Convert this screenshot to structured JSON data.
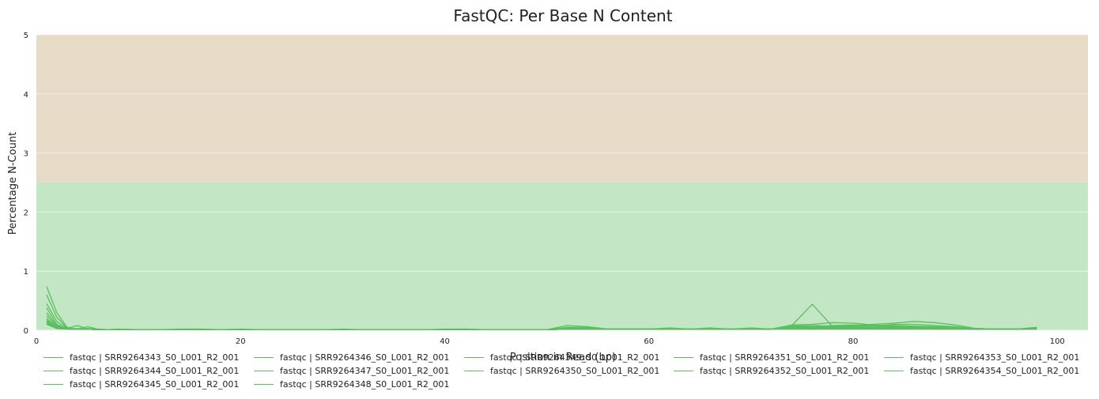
{
  "chart_data": {
    "type": "line",
    "title": "FastQC: Per Base N Content",
    "xlabel": "Position in Read (bp)",
    "ylabel": "Percentage N-Count",
    "xlim": [
      0,
      103
    ],
    "ylim": [
      0,
      5
    ],
    "x_ticks": [
      "0",
      "20",
      "40",
      "60",
      "80",
      "100"
    ],
    "y_ticks": [
      "0",
      "1",
      "2",
      "3",
      "4",
      "5"
    ],
    "grid": true,
    "legend_position": "bottom",
    "bands": [
      {
        "from": 0,
        "to": 2.5,
        "color": "#c3e6c4"
      },
      {
        "from": 2.5,
        "to": 5,
        "color": "#e5dbc6"
      }
    ],
    "line_color": "#5cbf5f",
    "x": [
      1,
      2,
      3,
      4,
      5,
      6,
      7,
      8,
      10,
      12,
      14,
      16,
      18,
      20,
      22,
      24,
      26,
      28,
      30,
      32,
      34,
      36,
      38,
      40,
      42,
      44,
      46,
      48,
      50,
      52,
      54,
      56,
      58,
      60,
      62,
      64,
      66,
      68,
      70,
      72,
      74,
      76,
      78,
      80,
      82,
      84,
      86,
      88,
      90,
      92,
      94,
      96,
      98
    ],
    "series": [
      {
        "name": "fastqc | SRR9264343_S0_L001_R2_001",
        "values": [
          0.74,
          0.3,
          0.05,
          0.02,
          0.06,
          0.02,
          0.01,
          0.02,
          0.01,
          0.01,
          0.02,
          0.02,
          0.01,
          0.02,
          0.01,
          0.01,
          0.01,
          0.01,
          0.02,
          0.01,
          0.01,
          0.01,
          0.01,
          0.02,
          0.02,
          0.01,
          0.01,
          0.01,
          0.01,
          0.08,
          0.06,
          0.02,
          0.02,
          0.02,
          0.04,
          0.02,
          0.04,
          0.02,
          0.02,
          0.02,
          0.08,
          0.44,
          0.06,
          0.06,
          0.07,
          0.1,
          0.1,
          0.08,
          0.06,
          0.03,
          0.02,
          0.02,
          0.04
        ]
      },
      {
        "name": "fastqc | SRR9264344_S0_L001_R2_001",
        "values": [
          0.6,
          0.22,
          0.04,
          0.02,
          0.03,
          0.02,
          0.01,
          0.02,
          0.01,
          0.01,
          0.01,
          0.02,
          0.01,
          0.01,
          0.01,
          0.01,
          0.01,
          0.01,
          0.01,
          0.01,
          0.01,
          0.01,
          0.01,
          0.01,
          0.02,
          0.01,
          0.01,
          0.01,
          0.01,
          0.05,
          0.05,
          0.02,
          0.02,
          0.02,
          0.03,
          0.02,
          0.03,
          0.02,
          0.02,
          0.02,
          0.09,
          0.1,
          0.13,
          0.12,
          0.09,
          0.07,
          0.06,
          0.05,
          0.04,
          0.03,
          0.02,
          0.02,
          0.03
        ]
      },
      {
        "name": "fastqc | SRR9264345_S0_L001_R2_001",
        "values": [
          0.45,
          0.15,
          0.03,
          0.08,
          0.02,
          0.01,
          0.01,
          0.01,
          0.01,
          0.01,
          0.01,
          0.01,
          0.01,
          0.01,
          0.01,
          0.01,
          0.01,
          0.01,
          0.01,
          0.01,
          0.01,
          0.01,
          0.01,
          0.01,
          0.01,
          0.01,
          0.01,
          0.01,
          0.01,
          0.04,
          0.04,
          0.02,
          0.02,
          0.02,
          0.03,
          0.02,
          0.03,
          0.02,
          0.04,
          0.02,
          0.07,
          0.08,
          0.07,
          0.08,
          0.1,
          0.12,
          0.15,
          0.13,
          0.09,
          0.03,
          0.02,
          0.02,
          0.05
        ]
      },
      {
        "name": "fastqc | SRR9264346_S0_L001_R2_001",
        "values": [
          0.38,
          0.1,
          0.02,
          0.03,
          0.02,
          0.01,
          0.01,
          0.01,
          0.01,
          0.01,
          0.01,
          0.01,
          0.01,
          0.01,
          0.01,
          0.01,
          0.01,
          0.01,
          0.01,
          0.01,
          0.01,
          0.01,
          0.01,
          0.01,
          0.01,
          0.01,
          0.01,
          0.01,
          0.01,
          0.03,
          0.03,
          0.02,
          0.02,
          0.02,
          0.02,
          0.02,
          0.02,
          0.02,
          0.03,
          0.02,
          0.06,
          0.06,
          0.08,
          0.09,
          0.08,
          0.08,
          0.07,
          0.06,
          0.05,
          0.03,
          0.02,
          0.02,
          0.04
        ]
      },
      {
        "name": "fastqc | SRR9264347_S0_L001_R2_001",
        "values": [
          0.3,
          0.08,
          0.02,
          0.02,
          0.02,
          0.01,
          0.01,
          0.01,
          0.01,
          0.01,
          0.01,
          0.01,
          0.01,
          0.01,
          0.01,
          0.01,
          0.01,
          0.01,
          0.01,
          0.01,
          0.01,
          0.01,
          0.01,
          0.01,
          0.01,
          0.01,
          0.01,
          0.01,
          0.01,
          0.02,
          0.03,
          0.02,
          0.02,
          0.02,
          0.02,
          0.02,
          0.02,
          0.02,
          0.02,
          0.02,
          0.05,
          0.05,
          0.06,
          0.07,
          0.07,
          0.06,
          0.05,
          0.05,
          0.04,
          0.02,
          0.02,
          0.02,
          0.03
        ]
      },
      {
        "name": "fastqc | SRR9264348_S0_L001_R2_001",
        "values": [
          0.25,
          0.06,
          0.02,
          0.02,
          0.02,
          0.01,
          0.01,
          0.01,
          0.01,
          0.01,
          0.01,
          0.01,
          0.01,
          0.01,
          0.01,
          0.01,
          0.01,
          0.01,
          0.01,
          0.01,
          0.01,
          0.01,
          0.01,
          0.01,
          0.01,
          0.01,
          0.01,
          0.01,
          0.01,
          0.02,
          0.02,
          0.02,
          0.02,
          0.02,
          0.02,
          0.02,
          0.02,
          0.02,
          0.02,
          0.02,
          0.04,
          0.04,
          0.05,
          0.05,
          0.05,
          0.05,
          0.04,
          0.04,
          0.03,
          0.02,
          0.02,
          0.02,
          0.03
        ]
      },
      {
        "name": "fastqc | SRR9264349_S0_L001_R2_001",
        "values": [
          0.2,
          0.05,
          0.02,
          0.02,
          0.02,
          0.01,
          0.01,
          0.01,
          0.01,
          0.01,
          0.01,
          0.01,
          0.01,
          0.01,
          0.01,
          0.01,
          0.01,
          0.01,
          0.01,
          0.01,
          0.01,
          0.01,
          0.01,
          0.01,
          0.01,
          0.01,
          0.01,
          0.01,
          0.01,
          0.02,
          0.02,
          0.02,
          0.02,
          0.02,
          0.02,
          0.02,
          0.02,
          0.02,
          0.02,
          0.02,
          0.04,
          0.03,
          0.04,
          0.04,
          0.04,
          0.04,
          0.04,
          0.03,
          0.03,
          0.02,
          0.02,
          0.02,
          0.03
        ]
      },
      {
        "name": "fastqc | SRR9264350_S0_L001_R2_001",
        "values": [
          0.17,
          0.05,
          0.02,
          0.02,
          0.02,
          0.01,
          0.01,
          0.01,
          0.01,
          0.01,
          0.01,
          0.01,
          0.01,
          0.01,
          0.01,
          0.01,
          0.01,
          0.01,
          0.01,
          0.01,
          0.01,
          0.01,
          0.01,
          0.01,
          0.01,
          0.01,
          0.01,
          0.01,
          0.01,
          0.02,
          0.02,
          0.02,
          0.02,
          0.02,
          0.02,
          0.02,
          0.02,
          0.02,
          0.02,
          0.02,
          0.03,
          0.03,
          0.04,
          0.04,
          0.04,
          0.04,
          0.03,
          0.03,
          0.03,
          0.02,
          0.02,
          0.02,
          0.02
        ]
      },
      {
        "name": "fastqc | SRR9264351_S0_L001_R2_001",
        "values": [
          0.15,
          0.04,
          0.02,
          0.02,
          0.02,
          0.01,
          0.01,
          0.01,
          0.01,
          0.01,
          0.01,
          0.01,
          0.01,
          0.01,
          0.01,
          0.01,
          0.01,
          0.01,
          0.01,
          0.01,
          0.01,
          0.01,
          0.01,
          0.01,
          0.01,
          0.01,
          0.01,
          0.01,
          0.01,
          0.02,
          0.02,
          0.02,
          0.02,
          0.02,
          0.02,
          0.02,
          0.02,
          0.02,
          0.02,
          0.02,
          0.03,
          0.03,
          0.03,
          0.03,
          0.03,
          0.03,
          0.03,
          0.03,
          0.02,
          0.02,
          0.02,
          0.02,
          0.02
        ]
      },
      {
        "name": "fastqc | SRR9264352_S0_L001_R2_001",
        "values": [
          0.13,
          0.04,
          0.02,
          0.02,
          0.02,
          0.01,
          0.01,
          0.01,
          0.01,
          0.01,
          0.01,
          0.01,
          0.01,
          0.01,
          0.01,
          0.01,
          0.01,
          0.01,
          0.01,
          0.01,
          0.01,
          0.01,
          0.01,
          0.01,
          0.01,
          0.01,
          0.01,
          0.01,
          0.01,
          0.02,
          0.02,
          0.02,
          0.02,
          0.02,
          0.02,
          0.02,
          0.02,
          0.02,
          0.02,
          0.02,
          0.03,
          0.02,
          0.03,
          0.03,
          0.03,
          0.03,
          0.03,
          0.02,
          0.02,
          0.02,
          0.02,
          0.02,
          0.02
        ]
      },
      {
        "name": "fastqc | SRR9264353_S0_L001_R2_001",
        "values": [
          0.12,
          0.03,
          0.02,
          0.02,
          0.02,
          0.01,
          0.01,
          0.01,
          0.01,
          0.01,
          0.01,
          0.01,
          0.01,
          0.01,
          0.01,
          0.01,
          0.01,
          0.01,
          0.01,
          0.01,
          0.01,
          0.01,
          0.01,
          0.01,
          0.01,
          0.01,
          0.01,
          0.01,
          0.01,
          0.02,
          0.02,
          0.02,
          0.02,
          0.02,
          0.02,
          0.02,
          0.02,
          0.02,
          0.02,
          0.02,
          0.02,
          0.02,
          0.03,
          0.03,
          0.03,
          0.03,
          0.03,
          0.02,
          0.02,
          0.02,
          0.02,
          0.02,
          0.02
        ]
      },
      {
        "name": "fastqc | SRR9264354_S0_L001_R2_001",
        "values": [
          0.1,
          0.03,
          0.02,
          0.02,
          0.02,
          0.01,
          0.01,
          0.01,
          0.01,
          0.01,
          0.01,
          0.01,
          0.01,
          0.01,
          0.01,
          0.01,
          0.01,
          0.01,
          0.01,
          0.01,
          0.01,
          0.01,
          0.01,
          0.01,
          0.01,
          0.01,
          0.01,
          0.01,
          0.01,
          0.02,
          0.02,
          0.02,
          0.02,
          0.02,
          0.02,
          0.02,
          0.02,
          0.02,
          0.02,
          0.02,
          0.02,
          0.02,
          0.02,
          0.02,
          0.02,
          0.02,
          0.02,
          0.02,
          0.02,
          0.02,
          0.02,
          0.02,
          0.02
        ]
      }
    ]
  }
}
